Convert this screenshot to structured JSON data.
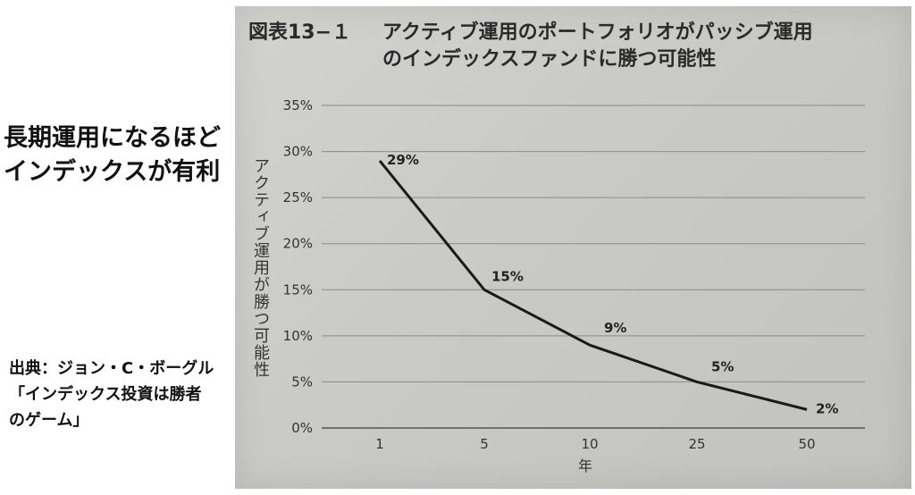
{
  "headline": "長期運用になるほどインデックスが有利",
  "source": "出典：ジョン・C・ボーグル「インデックス投資は勝者のゲーム」",
  "chart_data": {
    "type": "line",
    "title_number": "図表13−１",
    "title_line1": "アクティブ運用のポートフォリオがパッシブ運用",
    "title_line2": "のインデックスファンドに勝つ可能性",
    "ylabel": "アクティブ運用が勝つ可能性",
    "xlabel": "年",
    "categories": [
      "1",
      "5",
      "10",
      "25",
      "50"
    ],
    "values": [
      29,
      15,
      9,
      5,
      2
    ],
    "data_labels": [
      "29%",
      "15%",
      "9%",
      "5%",
      "2%"
    ],
    "yticks": [
      "0%",
      "5%",
      "10%",
      "15%",
      "20%",
      "25%",
      "30%",
      "35%"
    ],
    "ylim": [
      0,
      35
    ],
    "grid": "horizontal",
    "line_color": "#1a1a1a"
  }
}
